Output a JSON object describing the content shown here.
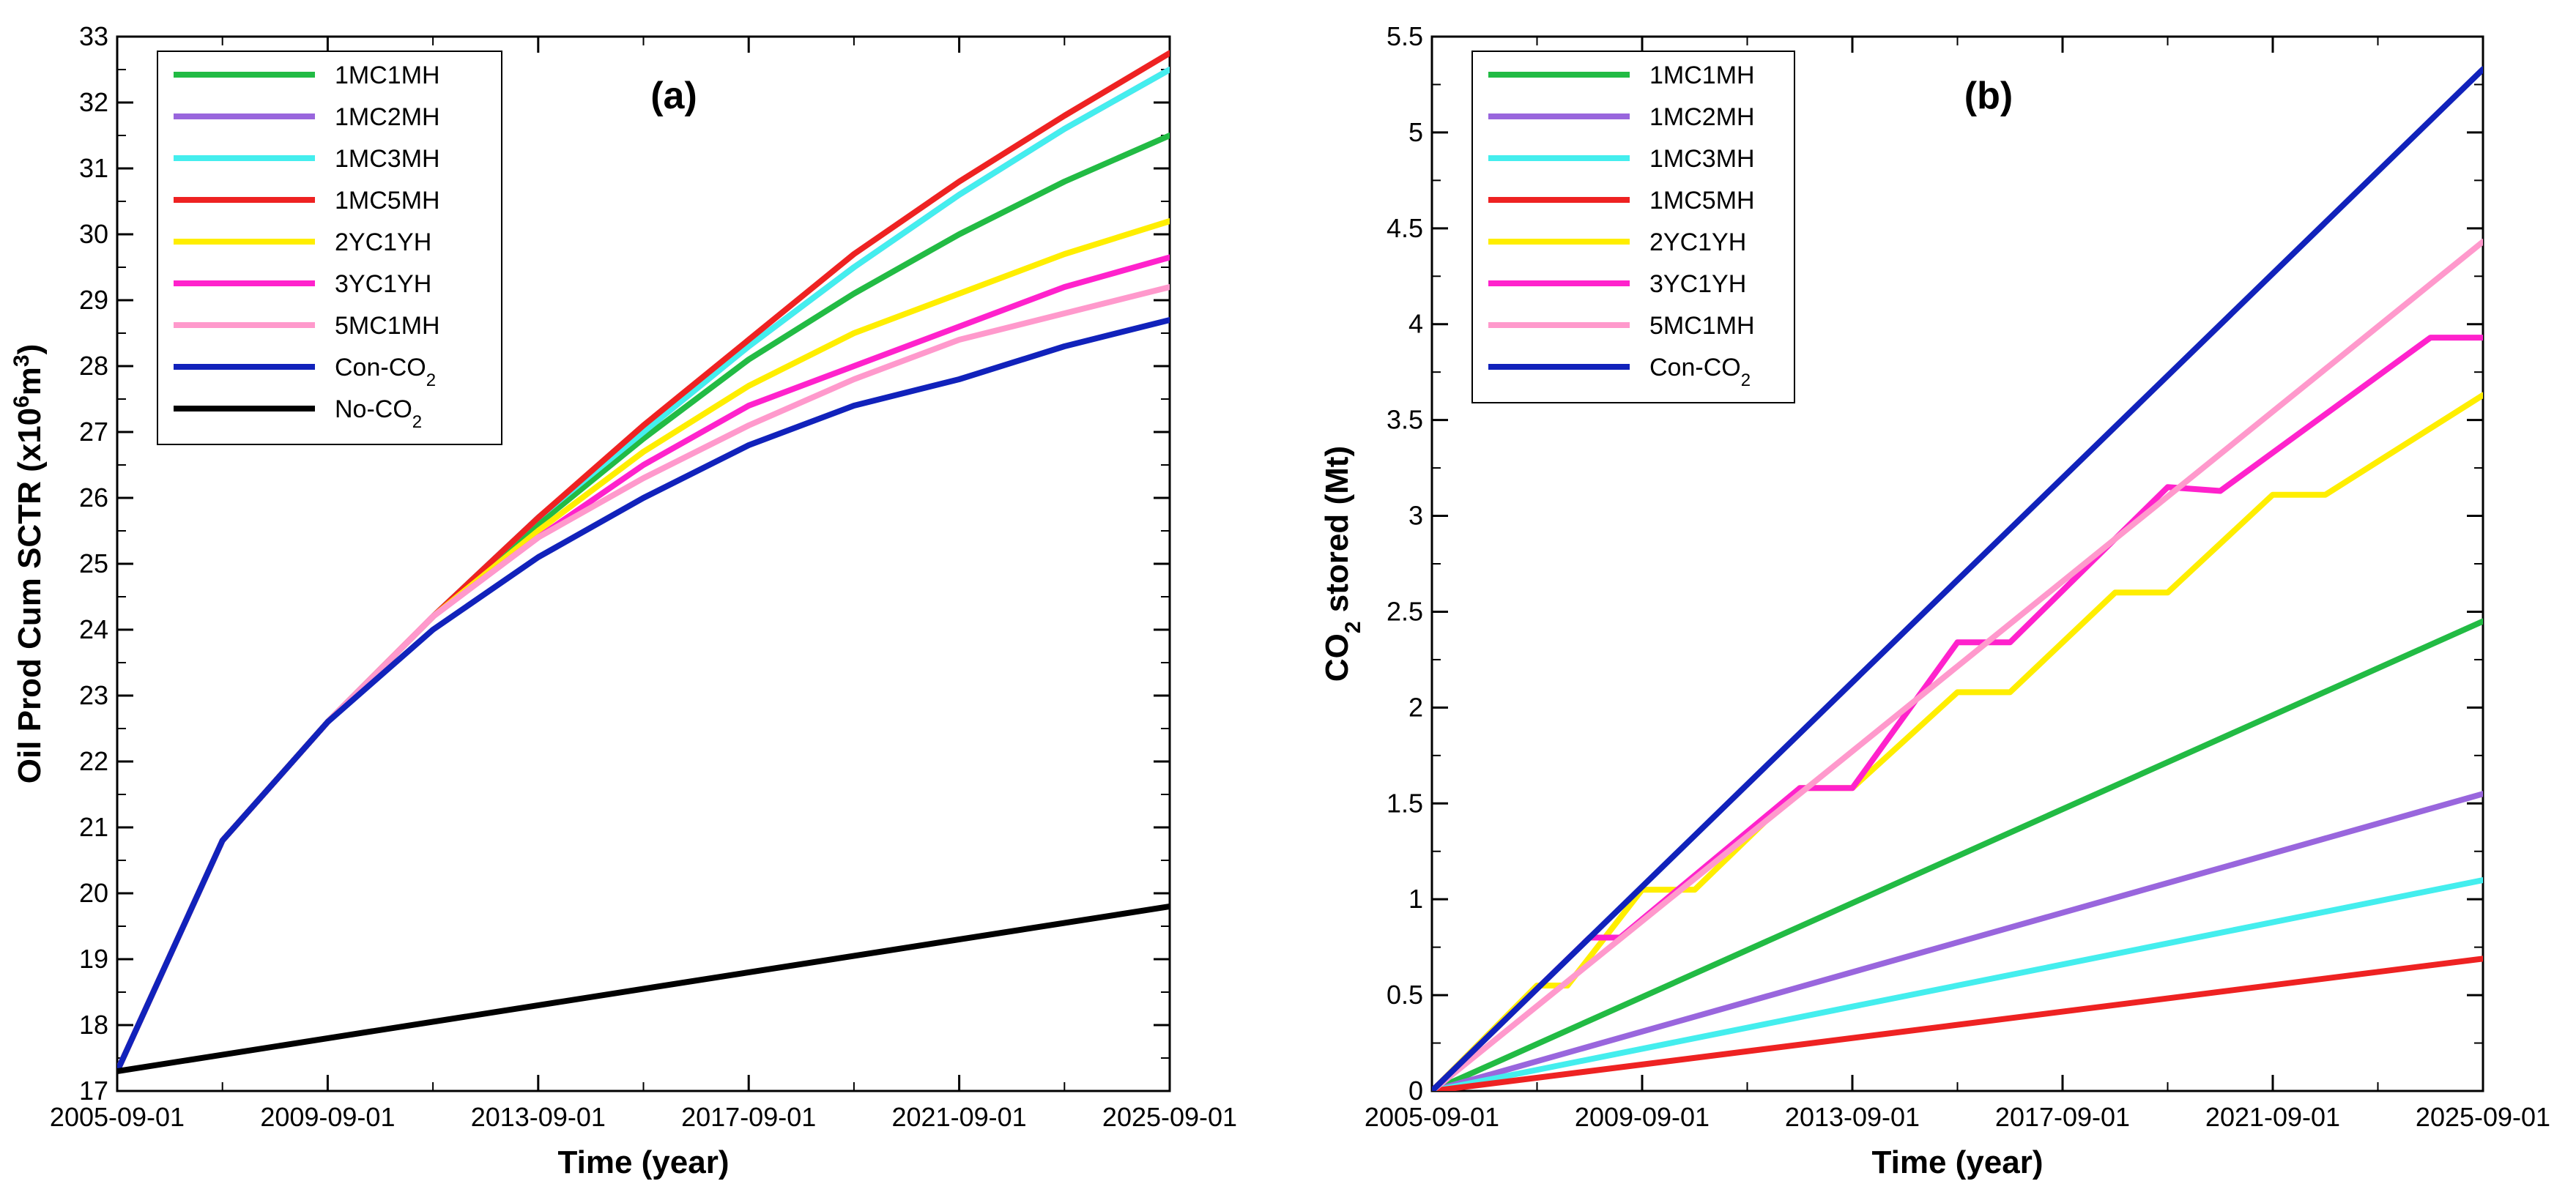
{
  "chart_data": [
    {
      "type": "line",
      "panel_label": "(a)",
      "xlabel": "Time (year)",
      "ylabel_main": "Oil Prod Cum SCTR (x10",
      "ylabel_sup": "6",
      "ylabel_unit": "m",
      "ylabel_sup2": "3",
      "ylabel_end": ")",
      "xlim": [
        2005.67,
        2025.67
      ],
      "ylim": [
        17,
        33
      ],
      "x_ticks": [
        {
          "x": 2005.67,
          "label": "2005-09-01"
        },
        {
          "x": 2009.67,
          "label": "2009-09-01"
        },
        {
          "x": 2013.67,
          "label": "2013-09-01"
        },
        {
          "x": 2017.67,
          "label": "2017-09-01"
        },
        {
          "x": 2021.67,
          "label": "2021-09-01"
        },
        {
          "x": 2025.67,
          "label": "2025-09-01"
        }
      ],
      "y_ticks": [
        17,
        18,
        19,
        20,
        21,
        22,
        23,
        24,
        25,
        26,
        27,
        28,
        29,
        30,
        31,
        32,
        33
      ],
      "legend_position": "top-left",
      "series": [
        {
          "name": "1MC1MH",
          "color": "#22bb44",
          "points": [
            [
              2005.67,
              17.3
            ],
            [
              2007.67,
              20.8
            ],
            [
              2009.67,
              22.6
            ],
            [
              2011.67,
              24.2
            ],
            [
              2013.67,
              25.6
            ],
            [
              2015.67,
              26.9
            ],
            [
              2017.67,
              28.1
            ],
            [
              2019.67,
              29.1
            ],
            [
              2021.67,
              30.0
            ],
            [
              2023.67,
              30.8
            ],
            [
              2025.67,
              31.5
            ]
          ]
        },
        {
          "name": "1MC2MH",
          "color": "#9966dd",
          "points": [
            [
              2005.67,
              17.3
            ],
            [
              2007.67,
              20.8
            ],
            [
              2009.67,
              22.6
            ],
            [
              2011.67,
              24.2
            ],
            [
              2013.67,
              25.7
            ],
            [
              2015.67,
              27.0
            ],
            [
              2017.67,
              28.3
            ],
            [
              2019.67,
              29.5
            ],
            [
              2021.67,
              30.6
            ],
            [
              2023.67,
              31.6
            ],
            [
              2025.67,
              32.5
            ]
          ]
        },
        {
          "name": "1MC3MH",
          "color": "#44eeee",
          "points": [
            [
              2005.67,
              17.3
            ],
            [
              2007.67,
              20.8
            ],
            [
              2009.67,
              22.6
            ],
            [
              2011.67,
              24.2
            ],
            [
              2013.67,
              25.7
            ],
            [
              2015.67,
              27.0
            ],
            [
              2017.67,
              28.3
            ],
            [
              2019.67,
              29.5
            ],
            [
              2021.67,
              30.6
            ],
            [
              2023.67,
              31.6
            ],
            [
              2025.67,
              32.5
            ]
          ]
        },
        {
          "name": "1MC5MH",
          "color": "#ee2222",
          "points": [
            [
              2005.67,
              17.3
            ],
            [
              2007.67,
              20.8
            ],
            [
              2009.67,
              22.6
            ],
            [
              2011.67,
              24.2
            ],
            [
              2013.67,
              25.7
            ],
            [
              2015.67,
              27.1
            ],
            [
              2017.67,
              28.4
            ],
            [
              2019.67,
              29.7
            ],
            [
              2021.67,
              30.8
            ],
            [
              2023.67,
              31.8
            ],
            [
              2025.67,
              32.75
            ]
          ]
        },
        {
          "name": "2YC1YH",
          "color": "#ffee00",
          "points": [
            [
              2005.67,
              17.3
            ],
            [
              2007.67,
              20.8
            ],
            [
              2009.67,
              22.6
            ],
            [
              2011.67,
              24.2
            ],
            [
              2013.67,
              25.5
            ],
            [
              2015.67,
              26.7
            ],
            [
              2017.67,
              27.7
            ],
            [
              2019.67,
              28.5
            ],
            [
              2021.67,
              29.1
            ],
            [
              2023.67,
              29.7
            ],
            [
              2025.67,
              30.2
            ]
          ]
        },
        {
          "name": "3YC1YH",
          "color": "#ff22cc",
          "points": [
            [
              2005.67,
              17.3
            ],
            [
              2007.67,
              20.8
            ],
            [
              2009.67,
              22.6
            ],
            [
              2011.67,
              24.2
            ],
            [
              2013.67,
              25.4
            ],
            [
              2015.67,
              26.5
            ],
            [
              2017.67,
              27.4
            ],
            [
              2019.67,
              28.0
            ],
            [
              2021.67,
              28.6
            ],
            [
              2023.67,
              29.2
            ],
            [
              2025.67,
              29.65
            ]
          ]
        },
        {
          "name": "5MC1MH",
          "color": "#ff99cc",
          "points": [
            [
              2005.67,
              17.3
            ],
            [
              2007.67,
              20.8
            ],
            [
              2009.67,
              22.6
            ],
            [
              2011.67,
              24.2
            ],
            [
              2013.67,
              25.4
            ],
            [
              2015.67,
              26.3
            ],
            [
              2017.67,
              27.1
            ],
            [
              2019.67,
              27.8
            ],
            [
              2021.67,
              28.4
            ],
            [
              2023.67,
              28.8
            ],
            [
              2025.67,
              29.2
            ]
          ]
        },
        {
          "name": "Con-CO",
          "sub": "2",
          "color": "#1122bb",
          "points": [
            [
              2005.67,
              17.3
            ],
            [
              2007.67,
              20.8
            ],
            [
              2009.67,
              22.6
            ],
            [
              2011.67,
              24.0
            ],
            [
              2013.67,
              25.1
            ],
            [
              2015.67,
              26.0
            ],
            [
              2017.67,
              26.8
            ],
            [
              2019.67,
              27.4
            ],
            [
              2021.67,
              27.8
            ],
            [
              2023.67,
              28.3
            ],
            [
              2025.67,
              28.7
            ]
          ]
        },
        {
          "name": "No-CO",
          "sub": "2",
          "color": "#000000",
          "points": [
            [
              2005.67,
              17.3
            ],
            [
              2025.67,
              19.8
            ]
          ]
        }
      ]
    },
    {
      "type": "line",
      "panel_label": "(b)",
      "xlabel": "Time (year)",
      "ylabel_main": "CO",
      "ylabel_sub": "2",
      "ylabel_end": " stored (Mt)",
      "xlim": [
        2005.67,
        2025.67
      ],
      "ylim": [
        0,
        5.5
      ],
      "x_ticks": [
        {
          "x": 2005.67,
          "label": "2005-09-01"
        },
        {
          "x": 2009.67,
          "label": "2009-09-01"
        },
        {
          "x": 2013.67,
          "label": "2013-09-01"
        },
        {
          "x": 2017.67,
          "label": "2017-09-01"
        },
        {
          "x": 2021.67,
          "label": "2021-09-01"
        },
        {
          "x": 2025.67,
          "label": "2025-09-01"
        }
      ],
      "y_ticks": [
        "0",
        "0.5",
        "1",
        "1.5",
        "2",
        "2.5",
        "3",
        "3.5",
        "4",
        "4.5",
        "5",
        "5.5"
      ],
      "legend_position": "top-left",
      "series": [
        {
          "name": "1MC1MH",
          "color": "#22bb44",
          "points": [
            [
              2005.67,
              0
            ],
            [
              2025.67,
              2.45
            ]
          ]
        },
        {
          "name": "1MC2MH",
          "color": "#9966dd",
          "points": [
            [
              2005.67,
              0
            ],
            [
              2025.67,
              1.55
            ]
          ]
        },
        {
          "name": "1MC3MH",
          "color": "#44eeee",
          "points": [
            [
              2005.67,
              0
            ],
            [
              2025.67,
              1.1
            ]
          ]
        },
        {
          "name": "1MC5MH",
          "color": "#ee2222",
          "points": [
            [
              2005.67,
              0
            ],
            [
              2025.67,
              0.69
            ]
          ]
        },
        {
          "name": "2YC1YH",
          "color": "#ffee00",
          "points": [
            [
              2005.67,
              0
            ],
            [
              2007.67,
              0.55
            ],
            [
              2008.25,
              0.55
            ],
            [
              2009.67,
              1.05
            ],
            [
              2010.67,
              1.05
            ],
            [
              2012.67,
              1.58
            ],
            [
              2013.67,
              1.58
            ],
            [
              2015.67,
              2.08
            ],
            [
              2016.67,
              2.08
            ],
            [
              2018.67,
              2.6
            ],
            [
              2019.67,
              2.6
            ],
            [
              2021.67,
              3.11
            ],
            [
              2022.67,
              3.11
            ],
            [
              2025.67,
              3.63
            ]
          ]
        },
        {
          "name": "3YC1YH",
          "color": "#ff22cc",
          "points": [
            [
              2005.67,
              0
            ],
            [
              2008.67,
              0.8
            ],
            [
              2009.25,
              0.8
            ],
            [
              2012.67,
              1.58
            ],
            [
              2013.67,
              1.58
            ],
            [
              2015.67,
              2.34
            ],
            [
              2016.67,
              2.34
            ],
            [
              2019.67,
              3.15
            ],
            [
              2020.67,
              3.13
            ],
            [
              2024.67,
              3.93
            ],
            [
              2025.67,
              3.93
            ]
          ]
        },
        {
          "name": "5MC1MH",
          "color": "#ff99cc",
          "points": [
            [
              2005.67,
              0
            ],
            [
              2025.67,
              4.43
            ]
          ]
        },
        {
          "name": "Con-CO",
          "sub": "2",
          "color": "#1122bb",
          "points": [
            [
              2005.67,
              0
            ],
            [
              2025.67,
              5.33
            ]
          ]
        }
      ]
    }
  ]
}
